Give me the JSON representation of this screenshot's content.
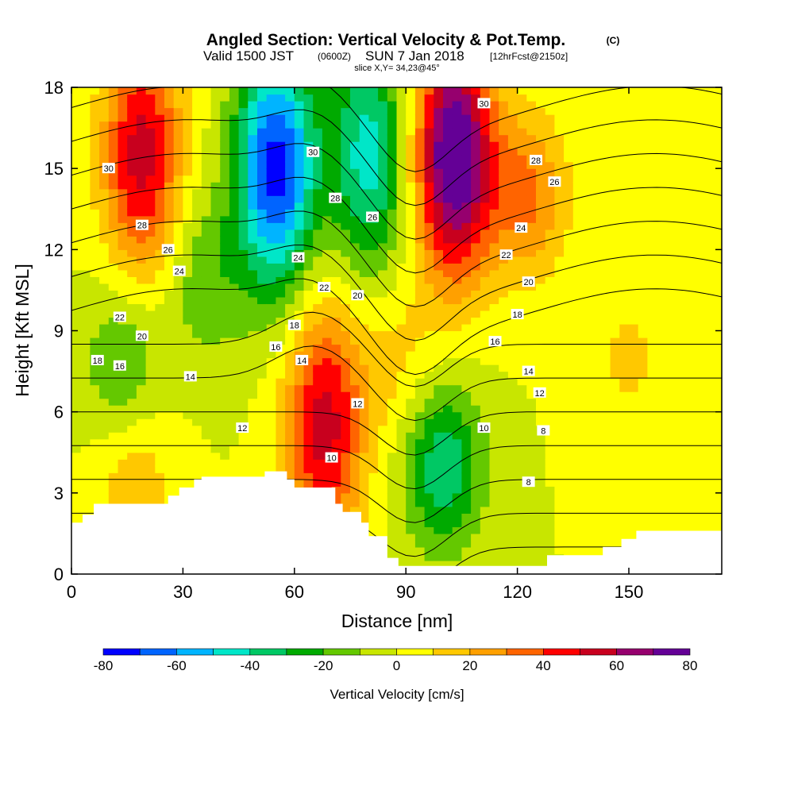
{
  "chart_data": {
    "type": "heatmap",
    "title": "Angled Section: Vertical Velocity & Pot.Temp.",
    "title_unit": "(C)",
    "subtitle_main": "Valid 1500 JST",
    "subtitle_z": "(0600Z)",
    "subtitle_date": "SUN 7 Jan 2018",
    "subtitle_fcst": "[12hrFcst@2150z]",
    "slice_label": "slice X,Y= 34,23@45°",
    "xlabel": "Distance [nm]",
    "ylabel": "Height [Kft MSL]",
    "xlim": [
      0,
      175
    ],
    "ylim": [
      0,
      18
    ],
    "x_ticks": [
      "0",
      "30",
      "60",
      "90",
      "120",
      "150"
    ],
    "x_tick_values": [
      0,
      30,
      60,
      90,
      120,
      150
    ],
    "y_ticks": [
      "0",
      "3",
      "6",
      "9",
      "12",
      "15",
      "18"
    ],
    "y_tick_values": [
      0,
      3,
      6,
      9,
      12,
      15,
      18
    ],
    "colorbar": {
      "label": "Vertical Velocity [cm/s]",
      "levels": [
        -80,
        -70,
        -60,
        -50,
        -40,
        -30,
        -20,
        -10,
        0,
        10,
        20,
        30,
        40,
        50,
        60,
        70,
        80
      ],
      "tick_labels": [
        "-80",
        "-60",
        "-40",
        "-20",
        "0",
        "20",
        "40",
        "60",
        "80"
      ],
      "tick_values": [
        -80,
        -60,
        -40,
        -20,
        0,
        20,
        40,
        60,
        80
      ],
      "colors": [
        "#0000ff",
        "#0064ff",
        "#00b4ff",
        "#00e6c8",
        "#00c864",
        "#00aa00",
        "#64c800",
        "#c8e600",
        "#ffff00",
        "#ffc800",
        "#ffa000",
        "#ff6400",
        "#ff0000",
        "#c8001e",
        "#96006e",
        "#640096"
      ]
    },
    "velocity_features": [
      {
        "x": 19,
        "z": 15.5,
        "w": 55
      },
      {
        "x": 55,
        "z": 15,
        "w": -75
      },
      {
        "x": 80,
        "z": 15.5,
        "w": -45
      },
      {
        "x": 103,
        "z": 15.5,
        "w": 85
      },
      {
        "x": 68,
        "z": 5.5,
        "w": 55
      },
      {
        "x": 100,
        "z": 4,
        "w": -38
      },
      {
        "x": 14,
        "z": 7.8,
        "w": -22
      },
      {
        "x": 36,
        "z": 11,
        "w": -18
      },
      {
        "x": 123,
        "z": 14,
        "w": 32
      },
      {
        "x": 17,
        "z": 3.5,
        "w": 18
      },
      {
        "x": 87,
        "z": 8,
        "w": 14
      },
      {
        "x": 150,
        "z": 8,
        "w": 12
      }
    ],
    "isentrope_labels": [
      {
        "x": 10,
        "z": 15,
        "v": "30"
      },
      {
        "x": 19,
        "z": 12.9,
        "v": "28"
      },
      {
        "x": 26,
        "z": 12,
        "v": "26"
      },
      {
        "x": 29,
        "z": 11.2,
        "v": "24"
      },
      {
        "x": 13,
        "z": 9.5,
        "v": "22"
      },
      {
        "x": 19,
        "z": 8.8,
        "v": "20"
      },
      {
        "x": 7,
        "z": 7.9,
        "v": "18"
      },
      {
        "x": 13,
        "z": 7.7,
        "v": "16"
      },
      {
        "x": 32,
        "z": 7.3,
        "v": "14"
      },
      {
        "x": 46,
        "z": 5.4,
        "v": "12"
      },
      {
        "x": 65,
        "z": 15.6,
        "v": "30"
      },
      {
        "x": 71,
        "z": 13.9,
        "v": "28"
      },
      {
        "x": 81,
        "z": 13.2,
        "v": "26"
      },
      {
        "x": 61,
        "z": 11.7,
        "v": "24"
      },
      {
        "x": 68,
        "z": 10.6,
        "v": "22"
      },
      {
        "x": 77,
        "z": 10.3,
        "v": "20"
      },
      {
        "x": 60,
        "z": 9.2,
        "v": "18"
      },
      {
        "x": 55,
        "z": 8.4,
        "v": "16"
      },
      {
        "x": 62,
        "z": 7.9,
        "v": "14"
      },
      {
        "x": 77,
        "z": 6.3,
        "v": "12"
      },
      {
        "x": 70,
        "z": 4.3,
        "v": "10"
      },
      {
        "x": 111,
        "z": 17.4,
        "v": "30"
      },
      {
        "x": 125,
        "z": 15.3,
        "v": "28"
      },
      {
        "x": 130,
        "z": 14.5,
        "v": "26"
      },
      {
        "x": 121,
        "z": 12.8,
        "v": "24"
      },
      {
        "x": 117,
        "z": 11.8,
        "v": "22"
      },
      {
        "x": 123,
        "z": 10.8,
        "v": "20"
      },
      {
        "x": 120,
        "z": 9.6,
        "v": "18"
      },
      {
        "x": 114,
        "z": 8.6,
        "v": "16"
      },
      {
        "x": 123,
        "z": 7.5,
        "v": "14"
      },
      {
        "x": 126,
        "z": 6.7,
        "v": "12"
      },
      {
        "x": 111,
        "z": 5.4,
        "v": "10"
      },
      {
        "x": 127,
        "z": 5.3,
        "v": "8"
      },
      {
        "x": 123,
        "z": 3.4,
        "v": "8"
      }
    ]
  }
}
